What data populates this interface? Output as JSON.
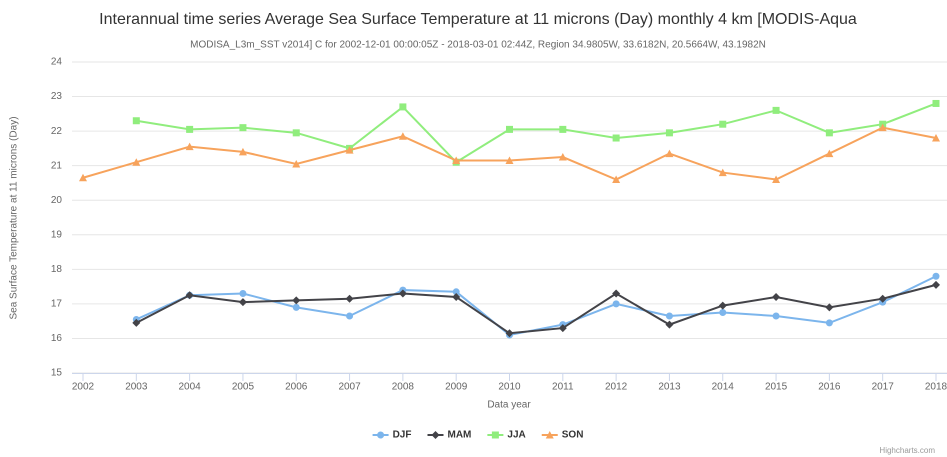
{
  "chart_data": {
    "type": "line",
    "title": "Interannual time series Average Sea Surface Temperature at 11 microns (Day) monthly 4 km [MODIS-Aqua",
    "subtitle": "MODISA_L3m_SST v2014] C for 2002-12-01 00:00:05Z - 2018-03-01 02:44Z, Region 34.9805W, 33.6182N, 20.5664W, 43.1982N",
    "y_label": "Sea Surface Temperature at 11 microns (Day)",
    "x_label": "Data year",
    "credits": "Highcharts.com",
    "x": [
      2002,
      2003,
      2004,
      2005,
      2006,
      2007,
      2008,
      2009,
      2010,
      2011,
      2012,
      2013,
      2014,
      2015,
      2016,
      2017,
      2018
    ],
    "xlim": [
      2002,
      2018
    ],
    "xticks": [
      2002,
      2003,
      2004,
      2005,
      2006,
      2007,
      2008,
      2009,
      2010,
      2011,
      2012,
      2013,
      2014,
      2015,
      2016,
      2017,
      2018
    ],
    "ylim": [
      15,
      24
    ],
    "yticks": [
      15,
      16,
      17,
      18,
      19,
      20,
      21,
      22,
      23,
      24
    ],
    "grid": true,
    "legend": "bottom",
    "series": [
      {
        "name": "DJF",
        "color": "#7cb5ec",
        "marker": "circle",
        "values": [
          null,
          16.55,
          17.25,
          17.3,
          16.9,
          16.65,
          17.4,
          17.35,
          16.1,
          16.4,
          17.0,
          16.65,
          16.75,
          16.65,
          16.45,
          17.05,
          17.8
        ]
      },
      {
        "name": "MAM",
        "color": "#434348",
        "marker": "diamond",
        "values": [
          null,
          16.45,
          17.25,
          17.05,
          17.1,
          17.15,
          17.3,
          17.2,
          16.15,
          16.3,
          17.3,
          16.4,
          16.95,
          17.2,
          16.9,
          17.15,
          17.55
        ]
      },
      {
        "name": "JJA",
        "color": "#90ed7d",
        "marker": "square",
        "values": [
          null,
          22.3,
          22.05,
          22.1,
          21.95,
          21.5,
          22.7,
          21.1,
          22.05,
          22.05,
          21.8,
          21.95,
          22.2,
          22.6,
          21.95,
          22.2,
          22.8
        ]
      },
      {
        "name": "SON",
        "color": "#f7a35c",
        "marker": "triangle",
        "values": [
          20.65,
          21.1,
          21.55,
          21.4,
          21.05,
          21.45,
          21.85,
          21.15,
          21.15,
          21.25,
          20.6,
          21.35,
          20.8,
          20.6,
          21.35,
          22.1,
          21.8
        ]
      }
    ]
  }
}
